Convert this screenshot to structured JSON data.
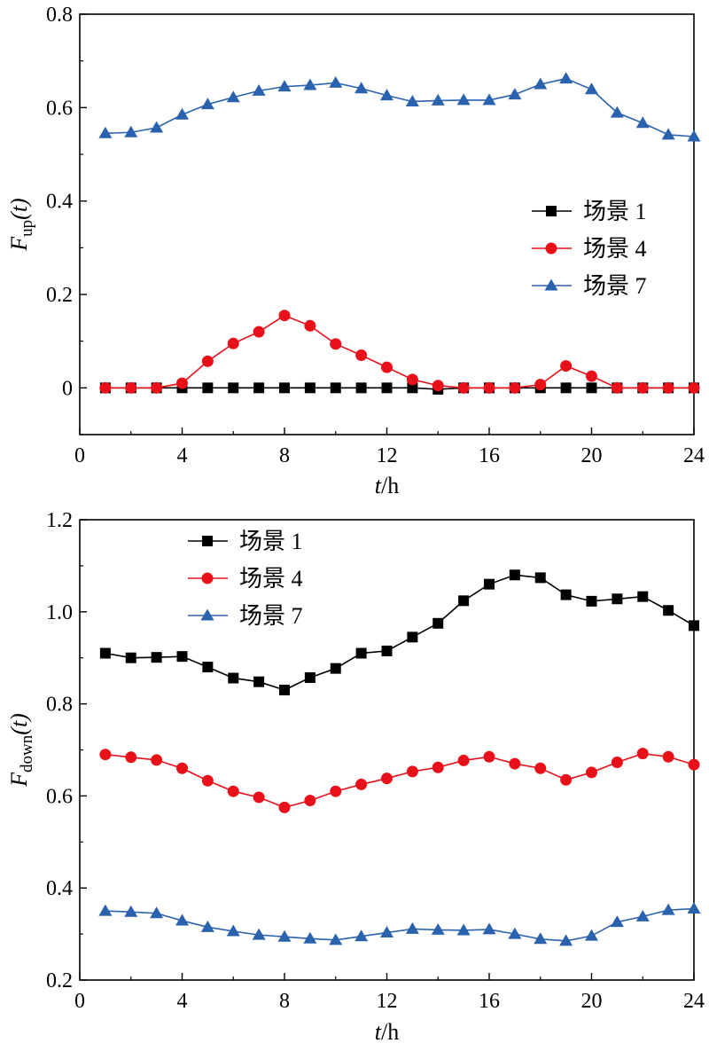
{
  "chart_data": [
    {
      "type": "line",
      "ylabel": {
        "main": "F",
        "sub": "up",
        "arg": "(t)"
      },
      "xlabel": {
        "var": "t",
        "unit": "/h"
      },
      "xlim": [
        0,
        24
      ],
      "ylim": [
        -0.1,
        0.8
      ],
      "xticks": [
        0,
        4,
        8,
        12,
        16,
        20,
        24
      ],
      "yticks": [
        0,
        0.2,
        0.4,
        0.6,
        0.8
      ],
      "ytick_labels": [
        "0",
        "0.2",
        "0.4",
        "0.6",
        "0.8"
      ],
      "legend_position": "center-right",
      "x": [
        1,
        2,
        3,
        4,
        5,
        6,
        7,
        8,
        9,
        10,
        11,
        12,
        13,
        14,
        15,
        16,
        17,
        18,
        19,
        20,
        21,
        22,
        23,
        24
      ],
      "series": [
        {
          "name": "场景 1",
          "color": "#000000",
          "marker": "square",
          "values": [
            0,
            0,
            0,
            0,
            0,
            0,
            0,
            0,
            0,
            0,
            0,
            0,
            0,
            -0.003,
            0,
            0,
            0,
            0,
            0,
            0,
            0,
            0,
            0,
            0
          ]
        },
        {
          "name": "场景 4",
          "color": "#e8111a",
          "marker": "circle",
          "values": [
            0,
            0,
            0,
            0.01,
            0.057,
            0.095,
            0.12,
            0.155,
            0.133,
            0.094,
            0.07,
            0.044,
            0.018,
            0.005,
            0,
            0,
            0,
            0.007,
            0.047,
            0.025,
            0,
            0,
            0,
            0
          ]
        },
        {
          "name": "场景 7",
          "color": "#2b62ae",
          "marker": "triangle",
          "values": [
            0.545,
            0.547,
            0.557,
            0.585,
            0.607,
            0.622,
            0.636,
            0.645,
            0.648,
            0.653,
            0.641,
            0.626,
            0.613,
            0.615,
            0.616,
            0.616,
            0.628,
            0.65,
            0.662,
            0.639,
            0.589,
            0.567,
            0.542,
            0.538
          ]
        }
      ]
    },
    {
      "type": "line",
      "ylabel": {
        "main": "F",
        "sub": "down",
        "arg": "(t)"
      },
      "xlabel": {
        "var": "t",
        "unit": "/h"
      },
      "xlim": [
        0,
        24
      ],
      "ylim": [
        0.2,
        1.2
      ],
      "xticks": [
        0,
        4,
        8,
        12,
        16,
        20,
        24
      ],
      "yticks": [
        0.2,
        0.4,
        0.6,
        0.8,
        1.0,
        1.2
      ],
      "ytick_labels": [
        "0.2",
        "0.4",
        "0.6",
        "0.8",
        "1.0",
        "1.2"
      ],
      "legend_position": "top-left",
      "x": [
        1,
        2,
        3,
        4,
        5,
        6,
        7,
        8,
        9,
        10,
        11,
        12,
        13,
        14,
        15,
        16,
        17,
        18,
        19,
        20,
        21,
        22,
        23,
        24
      ],
      "series": [
        {
          "name": "场景 1",
          "color": "#000000",
          "marker": "square",
          "values": [
            0.91,
            0.9,
            0.901,
            0.903,
            0.88,
            0.856,
            0.848,
            0.83,
            0.857,
            0.877,
            0.91,
            0.915,
            0.945,
            0.975,
            1.024,
            1.06,
            1.08,
            1.074,
            1.037,
            1.023,
            1.028,
            1.033,
            1.003,
            0.97
          ]
        },
        {
          "name": "场景 4",
          "color": "#e8111a",
          "marker": "circle",
          "values": [
            0.69,
            0.684,
            0.678,
            0.66,
            0.633,
            0.61,
            0.597,
            0.575,
            0.59,
            0.61,
            0.625,
            0.638,
            0.653,
            0.662,
            0.677,
            0.685,
            0.67,
            0.66,
            0.635,
            0.651,
            0.673,
            0.692,
            0.685,
            0.668
          ]
        },
        {
          "name": "场景 7",
          "color": "#2b62ae",
          "marker": "triangle",
          "values": [
            0.35,
            0.348,
            0.345,
            0.329,
            0.315,
            0.306,
            0.298,
            0.294,
            0.29,
            0.287,
            0.295,
            0.303,
            0.311,
            0.309,
            0.308,
            0.31,
            0.3,
            0.289,
            0.285,
            0.296,
            0.326,
            0.338,
            0.352,
            0.355
          ]
        }
      ]
    }
  ]
}
